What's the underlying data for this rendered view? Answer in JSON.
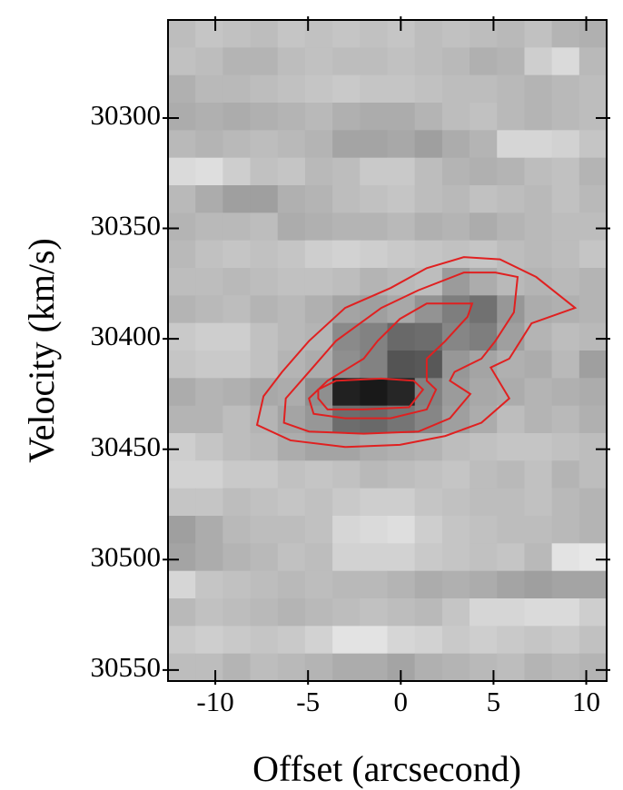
{
  "chart_data": {
    "type": "heatmap",
    "xlabel": "Offset (arcsecond)",
    "ylabel": "Velocity (km/s)",
    "xlim": [
      -12.55,
      11.1
    ],
    "ylim": [
      30255.6,
      30555
    ],
    "xticks": [
      -10,
      -5,
      0,
      5,
      10
    ],
    "yticks": [
      30300,
      30350,
      30400,
      30450,
      30500,
      30550
    ],
    "z": [
      [
        22,
        18,
        20,
        22,
        18,
        20,
        18,
        20,
        18,
        22,
        20,
        22,
        24,
        20,
        26,
        28
      ],
      [
        20,
        22,
        26,
        26,
        22,
        20,
        22,
        22,
        20,
        22,
        24,
        28,
        26,
        14,
        8,
        24
      ],
      [
        28,
        24,
        24,
        22,
        20,
        18,
        16,
        18,
        18,
        20,
        22,
        22,
        24,
        26,
        24,
        22
      ],
      [
        30,
        28,
        30,
        28,
        26,
        24,
        28,
        30,
        30,
        26,
        22,
        20,
        24,
        26,
        24,
        22
      ],
      [
        24,
        26,
        24,
        22,
        24,
        26,
        34,
        34,
        32,
        36,
        30,
        26,
        10,
        10,
        12,
        18
      ],
      [
        8,
        6,
        14,
        20,
        18,
        24,
        22,
        16,
        16,
        22,
        26,
        28,
        26,
        22,
        20,
        26
      ],
      [
        24,
        30,
        36,
        36,
        28,
        26,
        22,
        20,
        18,
        22,
        24,
        20,
        22,
        24,
        20,
        24
      ],
      [
        26,
        24,
        24,
        22,
        30,
        28,
        26,
        26,
        24,
        28,
        26,
        30,
        26,
        24,
        22,
        22
      ],
      [
        24,
        20,
        18,
        20,
        18,
        14,
        12,
        14,
        16,
        18,
        20,
        18,
        22,
        24,
        22,
        18
      ],
      [
        22,
        22,
        24,
        22,
        20,
        20,
        22,
        26,
        24,
        22,
        38,
        30,
        24,
        26,
        24,
        26
      ],
      [
        26,
        24,
        22,
        26,
        24,
        28,
        34,
        36,
        32,
        42,
        52,
        58,
        40,
        30,
        28,
        26
      ],
      [
        16,
        14,
        14,
        20,
        24,
        26,
        46,
        50,
        62,
        60,
        48,
        52,
        36,
        26,
        22,
        24
      ],
      [
        18,
        16,
        16,
        20,
        26,
        30,
        44,
        50,
        72,
        70,
        40,
        34,
        28,
        30,
        24,
        36
      ],
      [
        30,
        26,
        28,
        32,
        30,
        44,
        96,
        100,
        94,
        50,
        38,
        32,
        30,
        26,
        28,
        30
      ],
      [
        26,
        26,
        22,
        26,
        34,
        40,
        60,
        62,
        56,
        48,
        36,
        30,
        22,
        26,
        24,
        28
      ],
      [
        14,
        18,
        22,
        24,
        30,
        34,
        34,
        30,
        28,
        26,
        22,
        20,
        18,
        18,
        20,
        22
      ],
      [
        12,
        12,
        16,
        16,
        20,
        18,
        20,
        24,
        22,
        20,
        18,
        22,
        24,
        20,
        26,
        22
      ],
      [
        18,
        18,
        22,
        20,
        18,
        20,
        16,
        14,
        14,
        18,
        20,
        22,
        22,
        20,
        24,
        26
      ],
      [
        36,
        30,
        24,
        22,
        22,
        20,
        10,
        8,
        6,
        14,
        18,
        20,
        22,
        22,
        24,
        26
      ],
      [
        34,
        30,
        26,
        24,
        20,
        22,
        12,
        12,
        12,
        16,
        18,
        20,
        18,
        24,
        4,
        2
      ],
      [
        10,
        18,
        20,
        22,
        24,
        22,
        24,
        24,
        26,
        30,
        28,
        30,
        34,
        36,
        34,
        34
      ],
      [
        24,
        20,
        22,
        24,
        26,
        24,
        22,
        20,
        22,
        24,
        18,
        10,
        10,
        8,
        8,
        14
      ],
      [
        16,
        14,
        16,
        18,
        16,
        12,
        4,
        4,
        10,
        12,
        16,
        14,
        16,
        18,
        16,
        20
      ],
      [
        22,
        22,
        26,
        22,
        24,
        26,
        30,
        30,
        34,
        28,
        26,
        24,
        22,
        26,
        24,
        26
      ]
    ],
    "contour_color": "#e02020",
    "contours": [
      {
        "x": [
          -7.75,
          -7.4,
          -6.4,
          -4.95,
          -3.0,
          -0.55,
          1.4,
          3.4,
          5.35,
          7.3,
          9.4,
          7.05,
          5.85,
          4.85,
          5.85,
          4.35,
          2.4,
          -0.05,
          -3.0,
          -5.95
        ],
        "y": [
          30439,
          30426,
          30415,
          30401,
          30386,
          30377,
          30368,
          30363,
          30364,
          30372,
          30386,
          30393,
          30409,
          30413,
          30427,
          30438,
          30444,
          30448,
          30449,
          30446
        ]
      },
      {
        "x": [
          -6.3,
          -6.2,
          -4.95,
          -3.5,
          -1.05,
          0.95,
          3.4,
          5.1,
          6.3,
          6.1,
          5.1,
          4.35,
          2.9,
          2.65,
          3.75,
          2.65,
          0.95,
          -2.0,
          -4.95
        ],
        "y": [
          30438,
          30427,
          30415,
          30401,
          30386,
          30378,
          30370,
          30370,
          30372,
          30388,
          30401,
          30409,
          30415,
          30419,
          30425,
          30436,
          30442,
          30443,
          30442
        ]
      },
      {
        "x": [
          -4.95,
          -3.95,
          -2.0,
          -1.25,
          -0.05,
          1.4,
          3.85,
          3.6,
          2.4,
          1.4,
          1.4,
          1.9,
          1.4,
          -0.55,
          -3.0,
          -4.7
        ],
        "y": [
          30427,
          30419,
          30409,
          30401,
          30391,
          30384,
          30384,
          30390,
          30401,
          30409,
          30419,
          30423,
          30432,
          30436,
          30436,
          30434
        ]
      },
      {
        "x": [
          -4.45,
          -3.5,
          -1.05,
          0.7,
          1.2,
          0.45,
          -2.0,
          -3.95,
          -4.45
        ],
        "y": [
          30423,
          30419,
          30418,
          30419,
          30423,
          30431,
          30432,
          30432,
          30427
        ]
      }
    ]
  }
}
